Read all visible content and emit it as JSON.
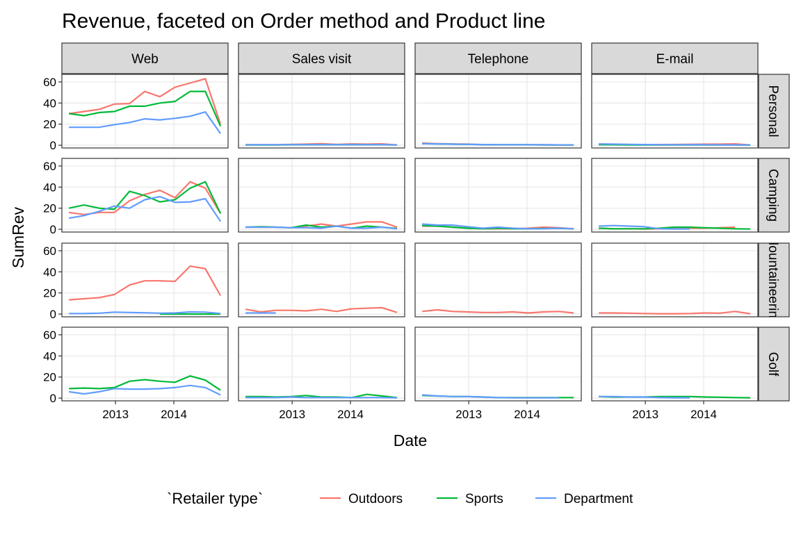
{
  "chart_data": {
    "type": "line",
    "title": "Revenue, faceted on Order method and Product line",
    "x_label": "Date",
    "y_label": "SumRev",
    "legend_title": "`Retailer type`",
    "columns": [
      "Web",
      "Sales visit",
      "Telephone",
      "E-mail"
    ],
    "rows": [
      "Personal",
      "Camping",
      "Mountaineering",
      "Golf"
    ],
    "series": [
      {
        "name": "Outdoors",
        "color": "#f8766d"
      },
      {
        "name": "Sports",
        "color": "#00ba38"
      },
      {
        "name": "Department",
        "color": "#619cff"
      }
    ],
    "x": [
      2012.2,
      2012.46,
      2012.72,
      2012.98,
      2013.24,
      2013.5,
      2013.76,
      2014.02,
      2014.28,
      2014.54,
      2014.8
    ],
    "xlim": [
      2012.08,
      2014.93
    ],
    "xticks": [
      2013,
      2014
    ],
    "ylim": [
      -2.6,
      67.2
    ],
    "yticks": [
      0,
      20,
      40,
      60
    ],
    "grid": true,
    "panels": [
      [
        [
          [
            30,
            32,
            34,
            39,
            39.5,
            51,
            46,
            55,
            59,
            63,
            20
          ],
          [
            30,
            28,
            31,
            32,
            37,
            37,
            40,
            41.5,
            51,
            51,
            18
          ],
          [
            17,
            17,
            17,
            19.5,
            21.5,
            25,
            24,
            25.5,
            27.5,
            31.5,
            11
          ]
        ],
        [
          [
            0.5,
            0.5,
            0.5,
            0.8,
            1,
            1.5,
            0.8,
            1.2,
            1,
            1.3,
            0.3
          ],
          [
            0.3,
            0.3,
            0.3,
            0.4,
            0.5,
            0.5,
            0.5,
            0.5,
            0.5,
            0.5,
            0.2
          ],
          [
            0.5,
            0.5,
            0.5,
            0.5,
            0.5,
            0.5,
            0.5,
            0.5,
            0.5,
            0.5,
            0.3
          ]
        ],
        [
          [
            2,
            1.5,
            1.2,
            1,
            0.6,
            0.5,
            0.5,
            0.5,
            0.4,
            0.3,
            0.2
          ],
          [
            1.5,
            1.2,
            1,
            0.8,
            0.5,
            0.4,
            0.4,
            0.4,
            0.3,
            0.3,
            0.2
          ],
          [
            1.5,
            1.3,
            1,
            0.8,
            0.6,
            0.5,
            0.5,
            0.4,
            0.4,
            0.3,
            0.2
          ]
        ],
        [
          [
            1,
            0.8,
            0.6,
            0.5,
            0.6,
            0.7,
            0.9,
            1,
            1,
            1.3,
            0.2
          ],
          [
            0.5,
            0.4,
            0.3,
            0.2,
            0.2,
            0.2,
            0.3,
            0.3,
            0.3,
            0.2,
            0.1
          ],
          [
            1.2,
            1,
            0.8,
            0.6,
            0.5,
            0.4,
            0.4,
            0.4,
            0.3,
            0.3,
            0.2
          ]
        ]
      ],
      [
        [
          [
            16,
            14,
            16,
            16,
            27,
            33,
            37,
            30,
            45,
            39,
            15
          ],
          [
            20,
            23,
            20,
            19,
            36,
            32,
            26,
            28,
            39,
            45,
            15
          ],
          [
            10.5,
            13,
            17,
            22,
            20,
            28,
            31,
            25.5,
            26,
            29,
            7.5
          ]
        ],
        [
          [
            2,
            2,
            2,
            1.5,
            3,
            5,
            3,
            5,
            7,
            7,
            2
          ],
          [
            2,
            2.5,
            2,
            1.5,
            4,
            2,
            3,
            1,
            3,
            2,
            0.8
          ],
          [
            2,
            2,
            2,
            1.5,
            1.5,
            1,
            3,
            1,
            1,
            2,
            0.5
          ]
        ],
        [
          [
            3,
            3,
            2,
            1,
            0.5,
            0.5,
            0.5,
            1,
            2,
            1.5,
            0.5
          ],
          [
            3.5,
            3,
            2,
            1,
            0.5,
            1,
            0.5,
            0.5,
            0.8,
            0.8,
            0.5
          ],
          [
            5,
            4,
            4,
            2.5,
            1,
            2,
            1,
            0.5,
            0.5,
            1,
            0.5
          ]
        ],
        [
          [
            1,
            0.5,
            0.5,
            0.3,
            0.5,
            1,
            1,
            1,
            1.5,
            2,
            null
          ],
          [
            1,
            0.5,
            0.5,
            0.5,
            1,
            2,
            2,
            1.5,
            1,
            0.5,
            0.2
          ],
          [
            3,
            3.5,
            3,
            2.5,
            0.5,
            0.3,
            0.3,
            null,
            null,
            null,
            null
          ]
        ]
      ],
      [
        [
          [
            13.5,
            14.5,
            15.5,
            18.5,
            27.5,
            31.5,
            31.5,
            31,
            45.5,
            43,
            17.5
          ],
          [
            null,
            null,
            null,
            null,
            null,
            null,
            0,
            0,
            0,
            0,
            0
          ],
          [
            0.5,
            0.5,
            0.8,
            1.8,
            1.5,
            1.2,
            0.8,
            1,
            2,
            1.8,
            0.5
          ]
        ],
        [
          [
            4.5,
            2,
            3.5,
            3.5,
            3,
            4.5,
            2.5,
            5,
            5.5,
            6,
            1.5
          ],
          [
            null,
            null,
            null,
            null,
            null,
            null,
            null,
            null,
            null,
            null,
            null
          ],
          [
            1,
            1,
            1,
            null,
            null,
            null,
            null,
            null,
            null,
            null,
            null
          ]
        ],
        [
          [
            2.5,
            4,
            2.5,
            2,
            1.5,
            1.5,
            2,
            1,
            2,
            2.5,
            1
          ],
          [
            null,
            null,
            null,
            null,
            null,
            null,
            null,
            null,
            null,
            null,
            null
          ],
          [
            null,
            null,
            null,
            null,
            null,
            null,
            null,
            null,
            null,
            null,
            null
          ]
        ],
        [
          [
            1,
            1,
            0.8,
            0.5,
            0.3,
            0.3,
            0.5,
            1,
            0.8,
            2.5,
            0.3
          ],
          [
            null,
            null,
            null,
            null,
            null,
            null,
            null,
            null,
            null,
            null,
            null
          ],
          [
            null,
            null,
            null,
            null,
            null,
            null,
            null,
            null,
            null,
            null,
            null
          ]
        ]
      ],
      [
        [
          [
            null,
            null,
            null,
            null,
            null,
            null,
            null,
            null,
            null,
            null,
            null
          ],
          [
            9,
            9.5,
            9,
            10,
            16,
            17.5,
            16,
            15,
            21,
            17,
            7.5
          ],
          [
            6,
            4,
            6,
            9,
            8.5,
            8.5,
            9,
            10,
            12,
            10,
            3
          ]
        ],
        [
          [
            null,
            null,
            null,
            null,
            null,
            null,
            null,
            null,
            null,
            null,
            null
          ],
          [
            1.5,
            1.5,
            1,
            1.5,
            2.5,
            1,
            1,
            0.5,
            3.5,
            2,
            0.5
          ],
          [
            0.5,
            0.5,
            0.5,
            1,
            0.5,
            0.5,
            0.5,
            0.5,
            0.5,
            0.5,
            0.3
          ]
        ],
        [
          [
            null,
            null,
            null,
            null,
            null,
            null,
            null,
            null,
            null,
            null,
            null
          ],
          [
            2.5,
            2,
            1.5,
            1.5,
            1,
            0.5,
            0.5,
            0.5,
            0.5,
            0.5,
            0.5
          ],
          [
            3,
            2,
            1.5,
            1.5,
            1,
            0.5,
            0.3,
            0.3,
            0.3,
            0.3,
            null
          ]
        ],
        [
          [
            null,
            null,
            null,
            null,
            null,
            null,
            null,
            null,
            null,
            null,
            null
          ],
          [
            1.5,
            1,
            1,
            1,
            1.5,
            1.5,
            1.5,
            1,
            0.8,
            0.5,
            0.3
          ],
          [
            1.5,
            1.5,
            1,
            1,
            0.5,
            0.3,
            0.3,
            null,
            null,
            null,
            null
          ]
        ]
      ]
    ]
  }
}
